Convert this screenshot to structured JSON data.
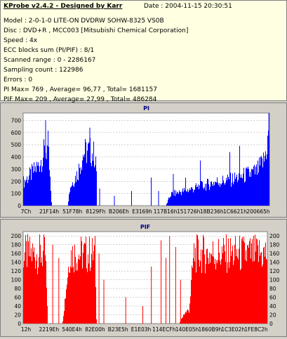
{
  "info": {
    "title": "KProbe v2.4.2 - Designed by Karr",
    "date": "Date : 2004-11-15 20:30:51",
    "lines": [
      "Model : 2-0-1-0 LITE-ON DVDRW SOHW-8325  VS0B",
      "Disc : DVD+R , MCC003 [Mitsubishi Chemical Corporation]",
      "Speed : 4x",
      "ECC blocks sum (PI/PIF) : 8/1",
      "Scanned range : 0 - 2286167",
      "Sampling count : 122986",
      "Errors : 0",
      "PI Max= 769 , Average= 96,77 , Total= 1681157",
      "PIF Max= 209 , Average= 27,99 , Total= 486284"
    ]
  },
  "chart_data": [
    {
      "type": "bar",
      "title": "PI",
      "color": "#0000ff",
      "ylim": [
        0,
        760
      ],
      "yticks": [
        0,
        100,
        200,
        300,
        400,
        500,
        600,
        700
      ],
      "xtick_labels": [
        "7Ch",
        "21F14h",
        "51F78h",
        "8129Fh",
        "B206Eh",
        "E3169h",
        "117B16h",
        "151726h",
        "18B236h",
        "1C6621h",
        "200665h"
      ],
      "profile": [
        {
          "x": 0.0,
          "y": 250
        },
        {
          "x": 0.03,
          "y": 330
        },
        {
          "x": 0.06,
          "y": 420
        },
        {
          "x": 0.085,
          "y": 560
        },
        {
          "x": 0.1,
          "y": 620
        },
        {
          "x": 0.115,
          "y": 0
        },
        {
          "x": 0.18,
          "y": 0
        },
        {
          "x": 0.19,
          "y": 200
        },
        {
          "x": 0.22,
          "y": 340
        },
        {
          "x": 0.245,
          "y": 560
        },
        {
          "x": 0.27,
          "y": 580
        },
        {
          "x": 0.295,
          "y": 520
        },
        {
          "x": 0.3,
          "y": 0
        },
        {
          "x": 0.58,
          "y": 0
        },
        {
          "x": 0.6,
          "y": 120
        },
        {
          "x": 0.66,
          "y": 160
        },
        {
          "x": 0.72,
          "y": 200
        },
        {
          "x": 0.78,
          "y": 250
        },
        {
          "x": 0.84,
          "y": 270
        },
        {
          "x": 0.9,
          "y": 320
        },
        {
          "x": 0.95,
          "y": 360
        },
        {
          "x": 0.98,
          "y": 480
        },
        {
          "x": 1.0,
          "y": 760
        }
      ],
      "spikes": [
        {
          "x": 0.09,
          "y": 700
        },
        {
          "x": 0.27,
          "y": 640
        },
        {
          "x": 0.31,
          "y": 140
        },
        {
          "x": 0.37,
          "y": 80
        },
        {
          "x": 0.44,
          "y": 120
        },
        {
          "x": 0.52,
          "y": 230
        },
        {
          "x": 0.55,
          "y": 120
        },
        {
          "x": 0.61,
          "y": 260
        },
        {
          "x": 0.66,
          "y": 230
        },
        {
          "x": 0.72,
          "y": 370
        },
        {
          "x": 0.84,
          "y": 440
        },
        {
          "x": 0.88,
          "y": 490
        },
        {
          "x": 0.999,
          "y": 760
        }
      ]
    },
    {
      "type": "bar",
      "title": "PIF",
      "color": "#ff0000",
      "ylim": [
        0,
        210
      ],
      "yticks": [
        0,
        20,
        40,
        60,
        80,
        100,
        120,
        140,
        160,
        180,
        200
      ],
      "xtick_labels": [
        "12h",
        "2219Eh",
        "540E4h",
        "82E00h",
        "B23E5h",
        "E1E03h",
        "114ECFh",
        "140E05h",
        "1860B9h",
        "1C3E02h",
        "1FE8C2h"
      ],
      "profile": [
        {
          "x": 0.0,
          "y": 205
        },
        {
          "x": 0.03,
          "y": 205
        },
        {
          "x": 0.05,
          "y": 205
        },
        {
          "x": 0.09,
          "y": 205
        },
        {
          "x": 0.1,
          "y": 0
        },
        {
          "x": 0.16,
          "y": 0
        },
        {
          "x": 0.19,
          "y": 205
        },
        {
          "x": 0.295,
          "y": 205
        },
        {
          "x": 0.3,
          "y": 0
        },
        {
          "x": 0.64,
          "y": 0
        },
        {
          "x": 0.66,
          "y": 30
        },
        {
          "x": 0.68,
          "y": 40
        },
        {
          "x": 0.7,
          "y": 205
        },
        {
          "x": 1.0,
          "y": 205
        }
      ],
      "spikes": [
        {
          "x": 0.12,
          "y": 180
        },
        {
          "x": 0.145,
          "y": 150
        },
        {
          "x": 0.31,
          "y": 160
        },
        {
          "x": 0.33,
          "y": 100
        },
        {
          "x": 0.42,
          "y": 60
        },
        {
          "x": 0.49,
          "y": 40
        },
        {
          "x": 0.525,
          "y": 130
        },
        {
          "x": 0.565,
          "y": 190
        },
        {
          "x": 0.585,
          "y": 150
        },
        {
          "x": 0.6,
          "y": 200
        },
        {
          "x": 0.625,
          "y": 175
        },
        {
          "x": 0.645,
          "y": 100
        }
      ]
    }
  ]
}
